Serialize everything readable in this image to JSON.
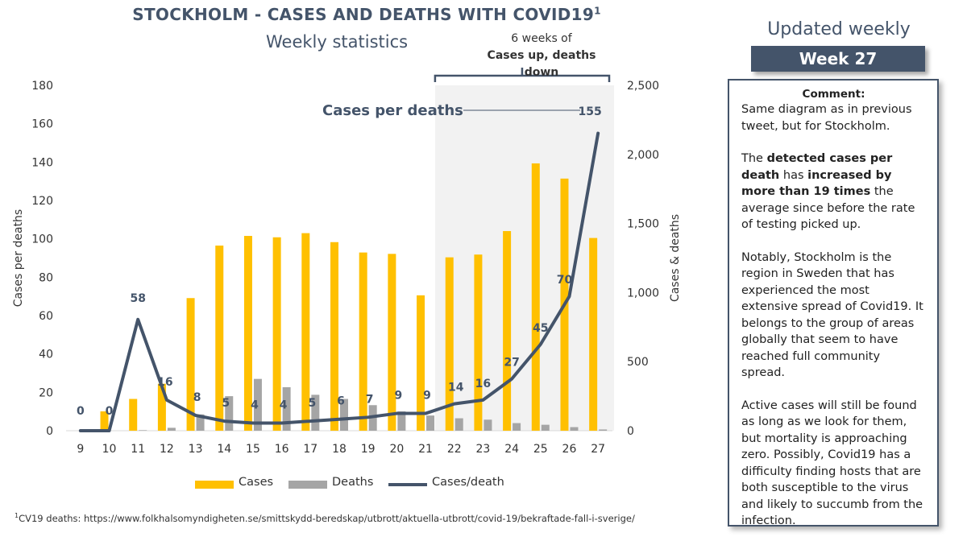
{
  "header": {
    "title": "STOCKHOLM - CASES AND DEATHS WITH COVID19",
    "title_sup": "1",
    "subtitle": "Weekly statistics"
  },
  "annotation": {
    "line1": "6 weeks of",
    "line2": "Cases up, deaths down",
    "cases_per_deaths_label": "Cases per deaths"
  },
  "sidebar": {
    "updated": "Updated weekly",
    "week": "Week 27",
    "comment_title": "Comment:",
    "p1": "Same diagram as in previous tweet, but for Stockholm.",
    "p2_pre": "The ",
    "p2_bold1": "detected cases per death",
    "p2_mid": " has ",
    "p2_bold2": "increased by more than 19 times",
    "p2_post": " the average since before the rate of testing picked up.",
    "p3": "Notably, Stockholm is the region in Sweden that has experienced the most extensive spread of Covid19. It belongs to the group of areas globally that seem to have reached full community spread.",
    "p4": "Active cases will still be found as long as we look for them, but mortality is approaching zero. Possibly, Covid19 has a difficulty finding hosts that are both susceptible to the virus and likely to succumb from the infection."
  },
  "footnote": {
    "sup": "1",
    "text": "CV19 deaths: https://www.folkhalsomyndigheten.se/smittskydd-beredskap/utbrott/aktuella-utbrott/covid-19/bekraftade-fall-i-sverige/"
  },
  "colors": {
    "cases": "#ffc000",
    "deaths": "#a5a5a5",
    "ratio": "#44546a",
    "highlight": "#f2f2f2"
  },
  "chart_data": {
    "type": "bar",
    "categories": [
      "9",
      "10",
      "11",
      "12",
      "13",
      "14",
      "15",
      "16",
      "17",
      "18",
      "19",
      "20",
      "21",
      "22",
      "23",
      "24",
      "25",
      "26",
      "27"
    ],
    "series": [
      {
        "name": "Cases",
        "axis": "right",
        "values": [
          0,
          140,
          230,
          340,
          960,
          1340,
          1410,
          1400,
          1430,
          1365,
          1290,
          1280,
          980,
          1255,
          1275,
          1445,
          1935,
          1825,
          1395
        ]
      },
      {
        "name": "Deaths",
        "axis": "right",
        "values": [
          0,
          0,
          4,
          21,
          118,
          250,
          375,
          315,
          260,
          230,
          185,
          140,
          110,
          90,
          80,
          55,
          43,
          26,
          9
        ]
      },
      {
        "name": "Cases/death",
        "axis": "left",
        "type": "line",
        "values": [
          0,
          0,
          58,
          16,
          8,
          5,
          4,
          4,
          5,
          6,
          7,
          9,
          9,
          14,
          16,
          27,
          45,
          70,
          155
        ]
      }
    ],
    "ratio_labels": [
      "0",
      "0",
      "58",
      "16",
      "8",
      "5",
      "4",
      "4",
      "5",
      "6",
      "7",
      "9",
      "9",
      "14",
      "16",
      "27",
      "45",
      "70",
      "155"
    ],
    "left_axis": {
      "label": "Cases per deaths",
      "ylim": [
        0,
        180
      ],
      "ticks": [
        "0",
        "20",
        "40",
        "60",
        "80",
        "100",
        "120",
        "140",
        "160",
        "180"
      ]
    },
    "right_axis": {
      "label": "Cases & deaths",
      "ylim": [
        0,
        2500
      ],
      "ticks": [
        "0",
        "500",
        "1,000",
        "1,500",
        "2,000",
        "2,500"
      ]
    },
    "highlight_weeks": [
      "22",
      "27"
    ],
    "legend": {
      "position": "bottom",
      "items": [
        "Cases",
        "Deaths",
        "Cases/death"
      ]
    }
  }
}
